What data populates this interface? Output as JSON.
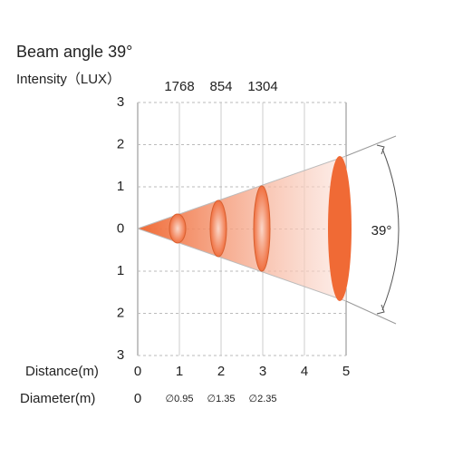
{
  "header": {
    "title": "Beam angle 39°",
    "subtitle": "Intensity（LUX）"
  },
  "intensity": [
    1768,
    854,
    1304
  ],
  "y_labels": [
    3,
    2,
    1,
    0,
    1,
    2,
    3
  ],
  "distance": {
    "label": "Distance(m)",
    "ticks": [
      0,
      1,
      2,
      3,
      4,
      5
    ]
  },
  "diameter": {
    "label": "Diameter(m)",
    "values": [
      "0",
      "∅0.95",
      "∅1.35",
      "∅2.35"
    ]
  },
  "angle_label": "39°"
}
